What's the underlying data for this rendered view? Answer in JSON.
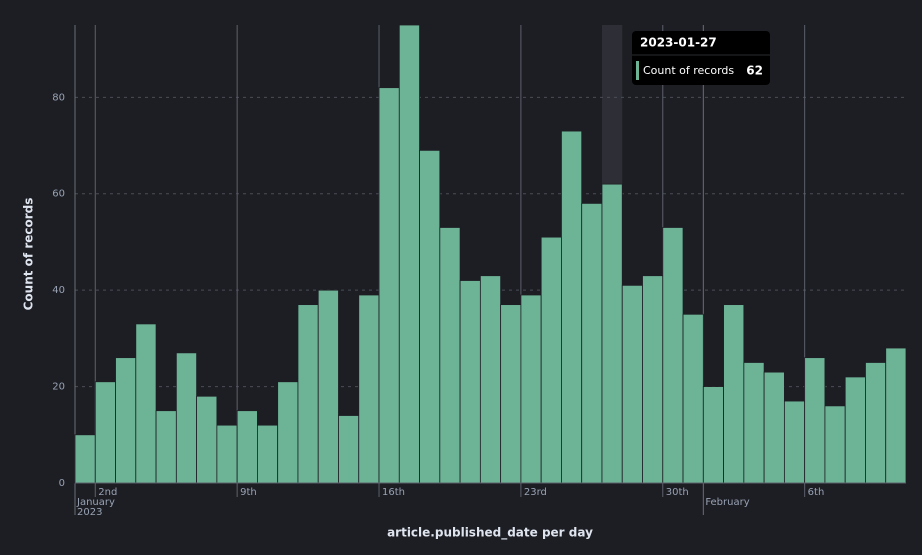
{
  "chart_data": {
    "type": "bar",
    "y_label": "Count of records",
    "x_label": "article.published_date per day",
    "x": [
      "2023-01-01",
      "2023-01-02",
      "2023-01-03",
      "2023-01-04",
      "2023-01-05",
      "2023-01-06",
      "2023-01-07",
      "2023-01-08",
      "2023-01-09",
      "2023-01-10",
      "2023-01-11",
      "2023-01-12",
      "2023-01-13",
      "2023-01-14",
      "2023-01-15",
      "2023-01-16",
      "2023-01-17",
      "2023-01-18",
      "2023-01-19",
      "2023-01-20",
      "2023-01-21",
      "2023-01-22",
      "2023-01-23",
      "2023-01-24",
      "2023-01-25",
      "2023-01-26",
      "2023-01-27",
      "2023-01-28",
      "2023-01-29",
      "2023-01-30",
      "2023-01-31",
      "2023-02-01",
      "2023-02-02",
      "2023-02-03",
      "2023-02-04",
      "2023-02-05",
      "2023-02-06",
      "2023-02-07",
      "2023-02-08",
      "2023-02-09",
      "2023-02-10"
    ],
    "series": [
      {
        "name": "Count of records",
        "color": "#6db396",
        "values": [
          10,
          21,
          26,
          33,
          15,
          27,
          18,
          12,
          15,
          12,
          21,
          37,
          40,
          14,
          39,
          82,
          95,
          69,
          53,
          42,
          43,
          37,
          39,
          51,
          73,
          58,
          62,
          41,
          43,
          53,
          35,
          20,
          37,
          25,
          23,
          17,
          26,
          16,
          22,
          25,
          28
        ]
      }
    ],
    "xlim": [
      "2023-01-01",
      "2023-02-11"
    ],
    "ylim": [
      0,
      95
    ],
    "yticks": [
      0,
      20,
      40,
      60,
      80
    ],
    "xticks": [
      {
        "value": "2023-01-02",
        "label": "2nd"
      },
      {
        "value": "2023-01-09",
        "label": "9th"
      },
      {
        "value": "2023-01-16",
        "label": "16th"
      },
      {
        "value": "2023-01-23",
        "label": "23rd"
      },
      {
        "value": "2023-01-30",
        "label": "30th"
      },
      {
        "value": "2023-02-06",
        "label": "6th"
      }
    ],
    "xticks_secondary": [
      {
        "value": "2023-01-01",
        "label": "January",
        "sublabel": "2023"
      },
      {
        "value": "2023-02-01",
        "label": "February"
      }
    ],
    "grid": true,
    "tooltip": {
      "index": 26
    }
  }
}
